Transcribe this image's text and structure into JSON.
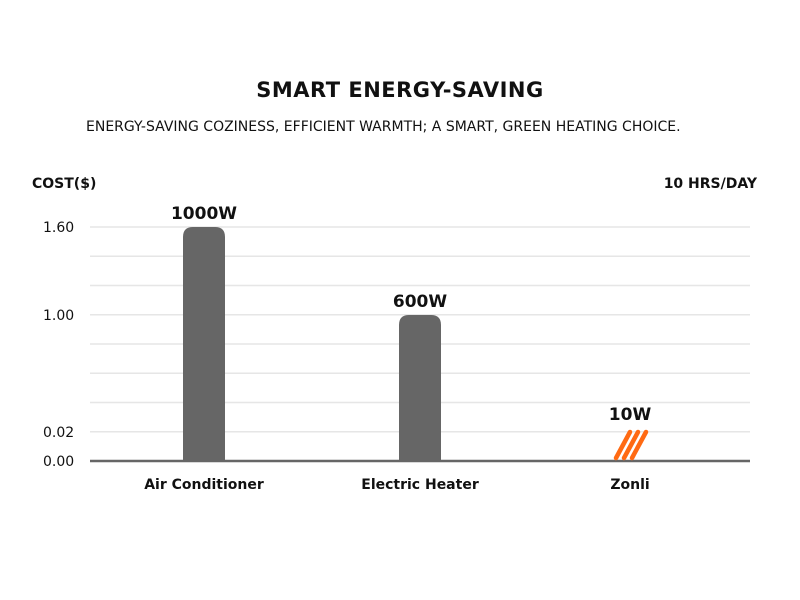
{
  "chart_data": {
    "type": "bar",
    "title": "SMART ENERGY-SAVING",
    "subtitle": "ENERGY-SAVING COZINESS,  EFFICIENT WARMTH;  A SMART, GREEN HEATING CHOICE.",
    "ylabel": "COST($)",
    "note": "10 HRS/DAY",
    "categories": [
      "Air Conditioner",
      "Electric Heater",
      "Zonli"
    ],
    "values": [
      1.6,
      1.0,
      0.02
    ],
    "data_labels": [
      "1000W",
      "600W",
      "10W"
    ],
    "y_ticks": [
      {
        "value": 0.0,
        "label": "0.00"
      },
      {
        "value": 0.02,
        "label": "0.02"
      },
      {
        "value": 1.0,
        "label": "1.00"
      },
      {
        "value": 1.6,
        "label": "1.60"
      }
    ],
    "ylim": [
      0,
      1.6
    ],
    "grid": true,
    "bar_color": "#666666",
    "highlight_color": "#ff6a13",
    "zonli_icon": "orange-stripes-logo-icon"
  }
}
